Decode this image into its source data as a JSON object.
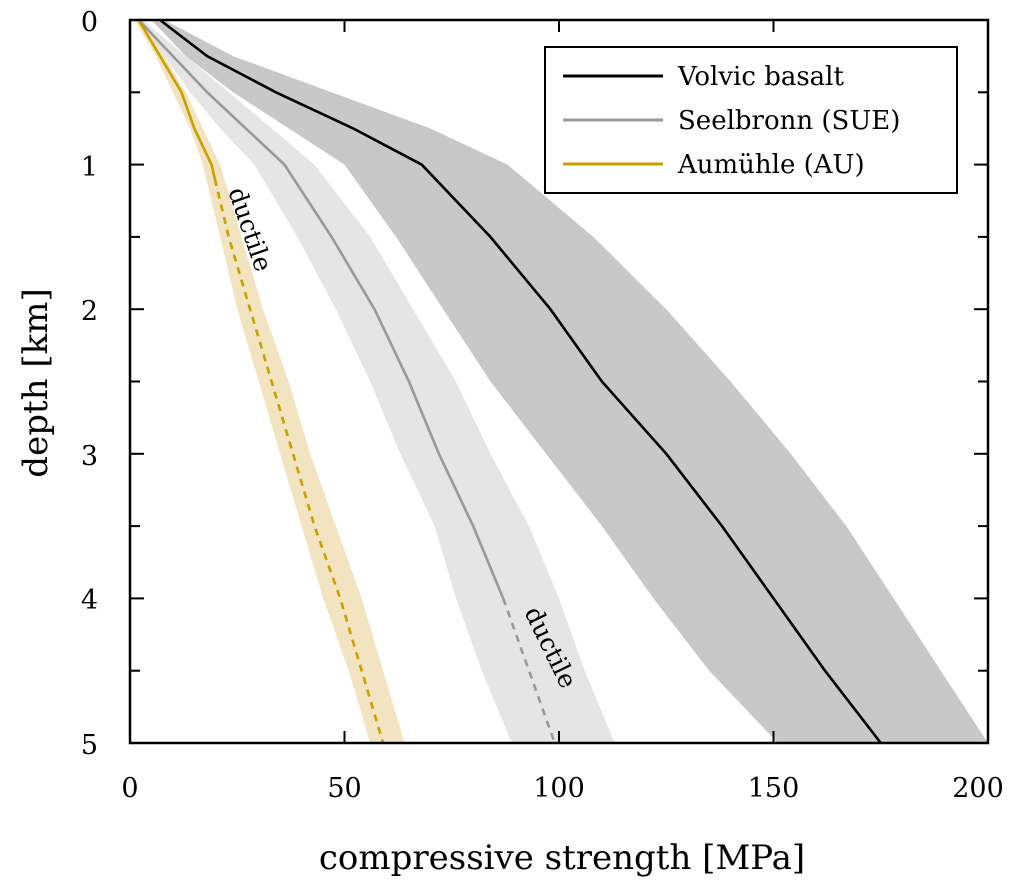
{
  "chart_data": {
    "type": "line",
    "xlabel": "compressive strength [MPa]",
    "ylabel": "depth [km]",
    "xlim": [
      0,
      200
    ],
    "ylim": [
      0,
      5
    ],
    "y_inverted": true,
    "x_ticks": [
      "0",
      "50",
      "100",
      "150",
      "200"
    ],
    "y_ticks": [
      "0",
      "1",
      "2",
      "3",
      "4",
      "5"
    ],
    "grid": false,
    "legend_position": "top-right",
    "series": [
      {
        "name": "Volvic basalt",
        "color": "#000000",
        "band_color": "#c8c8c8",
        "points": [
          [
            7,
            0
          ],
          [
            18,
            0.25
          ],
          [
            34,
            0.5
          ],
          [
            52,
            0.75
          ],
          [
            68,
            1
          ],
          [
            84,
            1.5
          ],
          [
            98,
            2
          ],
          [
            110,
            2.5
          ],
          [
            125,
            3
          ],
          [
            138,
            3.5
          ],
          [
            150,
            4
          ],
          [
            162,
            4.5
          ],
          [
            175,
            5
          ]
        ],
        "band_low": [
          [
            5,
            0
          ],
          [
            13,
            0.25
          ],
          [
            24,
            0.5
          ],
          [
            37,
            0.75
          ],
          [
            50,
            1
          ],
          [
            62,
            1.5
          ],
          [
            73,
            2
          ],
          [
            84,
            2.5
          ],
          [
            97,
            3
          ],
          [
            110,
            3.5
          ],
          [
            122,
            4
          ],
          [
            135,
            4.5
          ],
          [
            151,
            5
          ]
        ],
        "band_high": [
          [
            8,
            0
          ],
          [
            24,
            0.25
          ],
          [
            47,
            0.5
          ],
          [
            70,
            0.75
          ],
          [
            88,
            1
          ],
          [
            108,
            1.5
          ],
          [
            125,
            2
          ],
          [
            140,
            2.5
          ],
          [
            154,
            3
          ],
          [
            167,
            3.5
          ],
          [
            178,
            4
          ],
          [
            189,
            4.5
          ],
          [
            200,
            5
          ]
        ],
        "ductile_from_depth": null
      },
      {
        "name": "Seelbronn (SUE)",
        "color": "#999999",
        "band_color": "#e5e5e5",
        "points": [
          [
            2,
            0
          ],
          [
            10,
            0.25
          ],
          [
            18,
            0.5
          ],
          [
            27,
            0.75
          ],
          [
            36,
            1
          ],
          [
            47,
            1.5
          ],
          [
            57,
            2
          ],
          [
            65,
            2.5
          ],
          [
            72,
            3
          ],
          [
            80,
            3.5
          ],
          [
            87,
            4
          ],
          [
            93,
            4.5
          ],
          [
            99,
            5
          ]
        ],
        "band_low": [
          [
            1,
            0
          ],
          [
            8,
            0.25
          ],
          [
            14,
            0.5
          ],
          [
            21,
            0.75
          ],
          [
            29,
            1
          ],
          [
            39,
            1.5
          ],
          [
            48,
            2
          ],
          [
            56,
            2.5
          ],
          [
            63,
            3
          ],
          [
            71,
            3.5
          ],
          [
            76,
            4
          ],
          [
            82,
            4.5
          ],
          [
            89,
            5
          ]
        ],
        "band_high": [
          [
            3,
            0
          ],
          [
            13,
            0.25
          ],
          [
            23,
            0.5
          ],
          [
            33,
            0.75
          ],
          [
            43,
            1
          ],
          [
            56,
            1.5
          ],
          [
            66,
            2
          ],
          [
            76,
            2.5
          ],
          [
            84,
            3
          ],
          [
            93,
            3.5
          ],
          [
            100,
            4
          ],
          [
            106,
            4.5
          ],
          [
            113,
            5
          ]
        ],
        "ductile_from_depth": 4,
        "ductile_label": "ductile"
      },
      {
        "name": "Aumühle (AU)",
        "color": "#c8a000",
        "band_color": "#f2e4c0",
        "points": [
          [
            2,
            0
          ],
          [
            7,
            0.25
          ],
          [
            12,
            0.5
          ],
          [
            15,
            0.75
          ],
          [
            19,
            1
          ],
          [
            23,
            1.5
          ],
          [
            28,
            2
          ],
          [
            33,
            2.5
          ],
          [
            38,
            3
          ],
          [
            43,
            3.5
          ],
          [
            49,
            4
          ],
          [
            54,
            4.5
          ],
          [
            59,
            5
          ]
        ],
        "band_low": [
          [
            1,
            0
          ],
          [
            6,
            0.25
          ],
          [
            10,
            0.5
          ],
          [
            14,
            0.75
          ],
          [
            17,
            1
          ],
          [
            21,
            1.5
          ],
          [
            25,
            2
          ],
          [
            30,
            2.5
          ],
          [
            35,
            3
          ],
          [
            40,
            3.5
          ],
          [
            45,
            4
          ],
          [
            51,
            4.5
          ],
          [
            56,
            5
          ]
        ],
        "band_high": [
          [
            3,
            0
          ],
          [
            8,
            0.25
          ],
          [
            13,
            0.5
          ],
          [
            17,
            0.75
          ],
          [
            21,
            1
          ],
          [
            26,
            1.5
          ],
          [
            31,
            2
          ],
          [
            37,
            2.5
          ],
          [
            42,
            3
          ],
          [
            48,
            3.5
          ],
          [
            54,
            4
          ],
          [
            59,
            4.5
          ],
          [
            64,
            5
          ]
        ],
        "ductile_from_depth": 1.1,
        "ductile_label": "ductile"
      }
    ]
  }
}
